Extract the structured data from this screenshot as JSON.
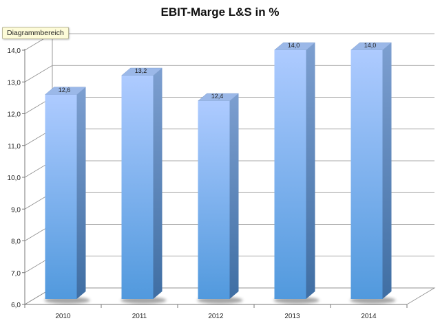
{
  "chart_data": {
    "type": "bar",
    "title": "EBIT-Marge L&S in %",
    "categories": [
      "2010",
      "2011",
      "2012",
      "2013",
      "2014"
    ],
    "values": [
      12.6,
      13.2,
      12.4,
      14.0,
      14.0
    ],
    "value_labels": [
      "12,6",
      "13,2",
      "12,4",
      "14,0",
      "14,0"
    ],
    "ylim": [
      6.0,
      14.0
    ],
    "yticks": [
      "6,0",
      "7,0",
      "8,0",
      "9,0",
      "10,0",
      "11,0",
      "12,0",
      "13,0",
      "14,0"
    ],
    "xlabel": "",
    "ylabel": "",
    "grid": true,
    "three_d": true,
    "bar_color_top": "#aecbff",
    "bar_color_bottom": "#5199dd",
    "bar_side_color": "#4a78b0"
  },
  "tooltip": {
    "label": "Diagrammbereich"
  }
}
